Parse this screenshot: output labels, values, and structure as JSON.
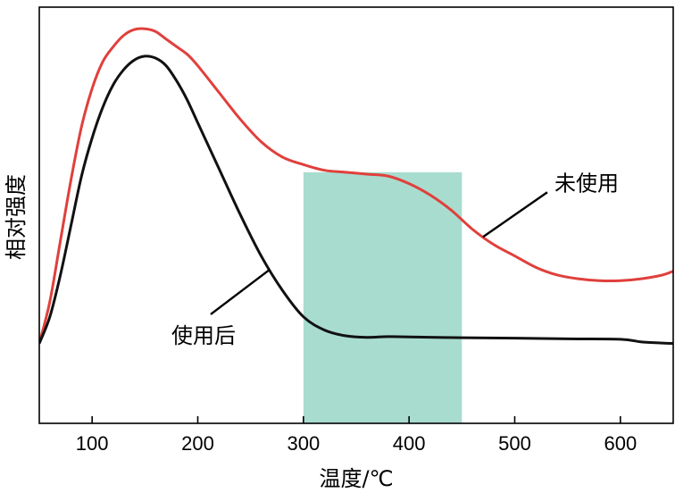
{
  "chart_data": {
    "type": "line",
    "title": "",
    "xlabel": "温度/℃",
    "ylabel": "相对强度",
    "xlim": [
      50,
      650
    ],
    "ylim": [
      0,
      100
    ],
    "y_ticks_shown": false,
    "x_ticks": [
      100,
      200,
      300,
      400,
      500,
      600
    ],
    "grid": false,
    "legend": "none",
    "highlight_band": {
      "x": [
        300,
        450
      ],
      "color": "#a8dccf"
    },
    "series": [
      {
        "name": "未使用",
        "color": "#e0403c",
        "x": [
          50,
          60,
          70,
          80,
          90,
          100,
          110,
          120,
          130,
          140,
          150,
          160,
          170,
          180,
          190,
          200,
          220,
          240,
          260,
          280,
          300,
          320,
          340,
          360,
          380,
          400,
          420,
          440,
          460,
          480,
          500,
          520,
          540,
          560,
          580,
          600,
          620,
          640,
          650
        ],
        "y": [
          21,
          32,
          48,
          64,
          78,
          88,
          95,
          99,
          102,
          103.5,
          103.7,
          103,
          101,
          99,
          97,
          94,
          87,
          80,
          74,
          70,
          68,
          66.5,
          66,
          65.5,
          65,
          63,
          60,
          56,
          51,
          47,
          44,
          41,
          39,
          38,
          37.5,
          37.5,
          38,
          39,
          40
        ]
      },
      {
        "name": "使用后",
        "color": "#111111",
        "x": [
          50,
          60,
          70,
          80,
          90,
          100,
          110,
          120,
          130,
          140,
          150,
          160,
          170,
          180,
          190,
          200,
          220,
          240,
          260,
          280,
          300,
          320,
          340,
          360,
          380,
          400,
          450,
          500,
          550,
          600,
          620,
          640,
          650
        ],
        "y": [
          21,
          28,
          39,
          52,
          65,
          75,
          83,
          89,
          93,
          95.5,
          96.5,
          96,
          94,
          90,
          85,
          79,
          67,
          55,
          44,
          35,
          28,
          24.5,
          23,
          22.6,
          22.8,
          22.7,
          22.5,
          22.4,
          22.2,
          22.1,
          21.4,
          21.1,
          21
        ]
      }
    ],
    "annotations": [
      {
        "text": "未使用",
        "series": "未使用",
        "at_x": 470
      },
      {
        "text": "使用后",
        "series": "使用后",
        "at_x": 268
      }
    ]
  }
}
